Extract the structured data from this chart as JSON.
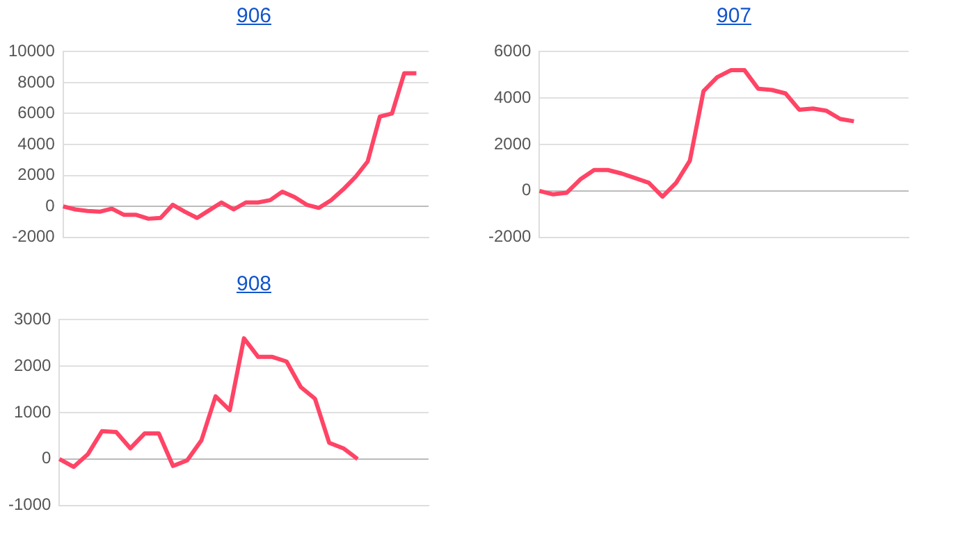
{
  "chart_data": [
    {
      "type": "line",
      "title": "906",
      "categories": [
        null,
        null,
        null,
        null,
        null,
        null,
        null,
        null,
        null,
        null,
        null,
        null,
        null,
        null,
        null,
        null,
        null,
        null,
        null,
        null,
        null,
        null,
        null,
        null,
        null,
        null,
        null,
        null,
        null,
        null,
        null
      ],
      "series": [
        {
          "color": "#ff4466",
          "values": [
            0,
            -200,
            -300,
            -350,
            -150,
            -550,
            -550,
            -800,
            -750,
            100,
            -350,
            -750,
            -250,
            250,
            -200,
            250,
            250,
            400,
            950,
            600,
            100,
            -100,
            400,
            1100,
            1900,
            2900,
            5800,
            6000,
            8600,
            8600,
            null
          ]
        }
      ],
      "ylim": [
        -2000,
        10000
      ],
      "yticks": [
        -2000,
        0,
        2000,
        4000,
        6000,
        8000,
        10000
      ],
      "grid": "y",
      "legend": false,
      "tick_labels": "y",
      "marker": "none"
    },
    {
      "type": "line",
      "title": "907",
      "categories": [
        null,
        null,
        null,
        null,
        null,
        null,
        null,
        null,
        null,
        null,
        null,
        null,
        null,
        null,
        null,
        null,
        null,
        null,
        null,
        null,
        null,
        null,
        null,
        null,
        null,
        null,
        null,
        null
      ],
      "series": [
        {
          "color": "#ff4466",
          "values": [
            0,
            -150,
            -80,
            500,
            900,
            900,
            750,
            550,
            350,
            -250,
            350,
            1300,
            4300,
            4900,
            5200,
            5200,
            4400,
            4350,
            4200,
            3500,
            3550,
            3450,
            3100,
            3000,
            null,
            null,
            null,
            null
          ]
        }
      ],
      "ylim": [
        -2000,
        6000
      ],
      "yticks": [
        -2000,
        0,
        2000,
        4000,
        6000
      ],
      "grid": "y",
      "legend": false,
      "tick_labels": "y",
      "marker": "none"
    },
    {
      "type": "line",
      "title": "908",
      "categories": [
        null,
        null,
        null,
        null,
        null,
        null,
        null,
        null,
        null,
        null,
        null,
        null,
        null,
        null,
        null,
        null,
        null,
        null,
        null,
        null,
        null,
        null,
        null,
        null,
        null,
        null,
        null
      ],
      "series": [
        {
          "color": "#ff4466",
          "values": [
            0,
            -170,
            100,
            600,
            580,
            230,
            550,
            550,
            -150,
            -30,
            400,
            1350,
            1050,
            2600,
            2200,
            2200,
            2100,
            1550,
            1300,
            350,
            230,
            0,
            null,
            null,
            null,
            null,
            null
          ]
        }
      ],
      "ylim": [
        -1000,
        3000
      ],
      "yticks": [
        -1000,
        0,
        1000,
        2000,
        3000
      ],
      "grid": "y",
      "legend": false,
      "tick_labels": "y",
      "marker": "none"
    }
  ]
}
